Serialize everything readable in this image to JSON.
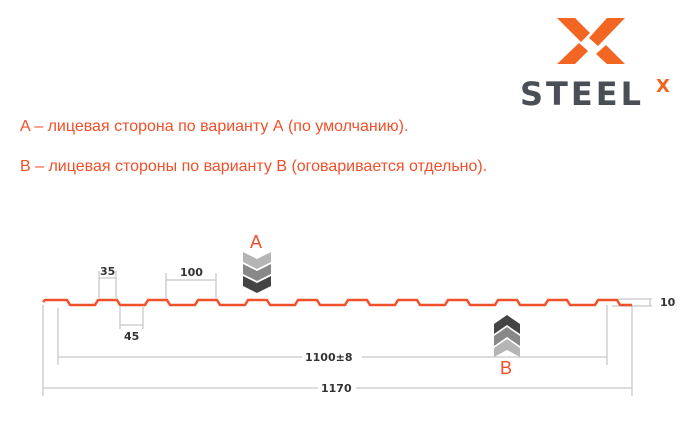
{
  "logo": {
    "text": "STEEL",
    "superscript": "X",
    "colors": {
      "orange": "#f26522",
      "gray": "#4a4f55"
    }
  },
  "notes": [
    "A – лицевая сторона по варианту А (по умолчанию).",
    "В – лицевая стороны по варианту В (оговаривается отдельно)."
  ],
  "diagram": {
    "profile_color": "#f0502a",
    "face_a_label": "A",
    "face_b_label": "B",
    "dimensions": {
      "top_width": "35",
      "pitch": "100",
      "bottom_width": "45",
      "height": "10",
      "useful_width": "1100±8",
      "total_width": "1170"
    }
  }
}
